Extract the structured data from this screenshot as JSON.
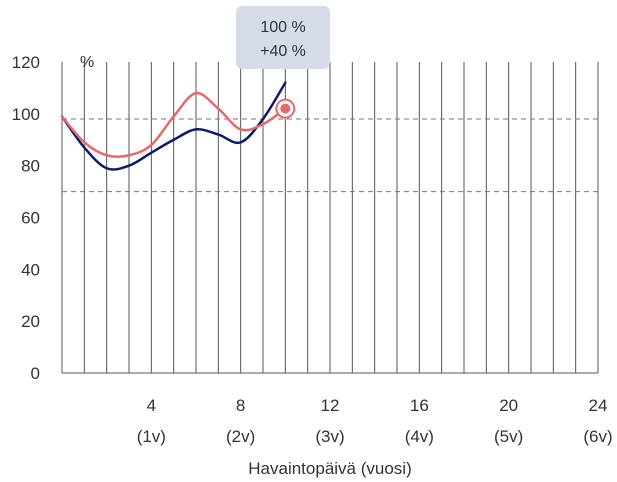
{
  "chart_data": {
    "type": "line",
    "xlabel": "Havaintopäivä (vuosi)",
    "ylabel": "%",
    "xlim": [
      0,
      24
    ],
    "ylim": [
      0,
      120
    ],
    "y_ticks": [
      "0",
      "20",
      "40",
      "60",
      "80",
      "100",
      "120"
    ],
    "x_ticks": [
      {
        "value": 4,
        "label": "4",
        "sublabel": "(1v)"
      },
      {
        "value": 8,
        "label": "8",
        "sublabel": "(2v)"
      },
      {
        "value": 12,
        "label": "12",
        "sublabel": "(3v)"
      },
      {
        "value": 16,
        "label": "16",
        "sublabel": "(4v)"
      },
      {
        "value": 20,
        "label": "20",
        "sublabel": "(5v)"
      },
      {
        "value": 24,
        "label": "24",
        "sublabel": "(6v)"
      }
    ],
    "reference_lines": [
      98,
      70
    ],
    "series": [
      {
        "color": "#0d1a6e",
        "x": [
          0,
          1,
          2,
          3,
          4,
          5,
          6,
          7,
          8,
          9,
          10
        ],
        "y": [
          99,
          87,
          79,
          80,
          85,
          90,
          94,
          92,
          89,
          98,
          112
        ]
      },
      {
        "color": "#e8686a",
        "x": [
          0,
          1,
          2,
          3,
          4,
          5,
          6,
          7,
          8,
          9,
          10
        ],
        "y": [
          99,
          89,
          84,
          84,
          88,
          99,
          108,
          102,
          94,
          96,
          102
        ]
      }
    ],
    "highlight_point": {
      "x": 10,
      "y": 102,
      "color": "#e8686a"
    },
    "tooltip": {
      "line1": "100 %",
      "line2": "+40 %"
    }
  }
}
